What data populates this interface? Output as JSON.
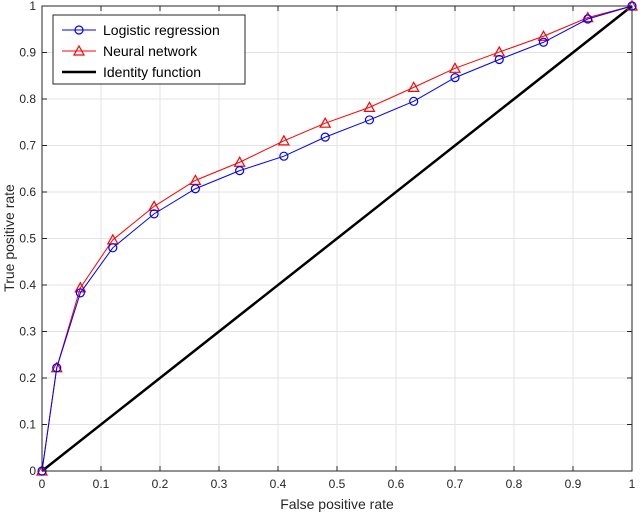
{
  "chart_data": {
    "type": "line",
    "title": "",
    "xlabel": "False positive rate",
    "ylabel": "True positive rate",
    "xlim": [
      0,
      1
    ],
    "ylim": [
      0,
      1
    ],
    "xticks": [
      0,
      0.1,
      0.2,
      0.3,
      0.4,
      0.5,
      0.6,
      0.7,
      0.8,
      0.9,
      1
    ],
    "yticks": [
      0,
      0.1,
      0.2,
      0.3,
      0.4,
      0.5,
      0.6,
      0.7,
      0.8,
      0.9,
      1
    ],
    "xtick_labels": [
      "0",
      "0.1",
      "0.2",
      "0.3",
      "0.4",
      "0.5",
      "0.6",
      "0.7",
      "0.8",
      "0.9",
      "1"
    ],
    "ytick_labels": [
      "0",
      "0.1",
      "0.2",
      "0.3",
      "0.4",
      "0.5",
      "0.6",
      "0.7",
      "0.8",
      "0.9",
      "1"
    ],
    "grid": true,
    "legend_position": "top-left",
    "series": [
      {
        "name": "Logistic regression",
        "color": "#0000ff",
        "marker": "circle",
        "x": [
          0,
          0.025,
          0.065,
          0.12,
          0.19,
          0.26,
          0.335,
          0.41,
          0.48,
          0.555,
          0.63,
          0.7,
          0.775,
          0.85,
          0.925,
          1.0
        ],
        "y": [
          0,
          0.222,
          0.383,
          0.48,
          0.553,
          0.607,
          0.646,
          0.677,
          0.718,
          0.755,
          0.795,
          0.846,
          0.885,
          0.922,
          0.972,
          1.0
        ]
      },
      {
        "name": "Neural network",
        "color": "#ff0000",
        "marker": "triangle",
        "x": [
          0,
          0.025,
          0.065,
          0.12,
          0.19,
          0.26,
          0.335,
          0.41,
          0.48,
          0.555,
          0.63,
          0.7,
          0.775,
          0.85,
          0.925,
          1.0
        ],
        "y": [
          0,
          0.222,
          0.394,
          0.497,
          0.569,
          0.625,
          0.664,
          0.71,
          0.748,
          0.782,
          0.825,
          0.866,
          0.901,
          0.935,
          0.975,
          1.0
        ]
      },
      {
        "name": "Identity function",
        "color": "#000000",
        "marker": "none",
        "x": [
          0,
          1
        ],
        "y": [
          0,
          1
        ]
      }
    ]
  }
}
